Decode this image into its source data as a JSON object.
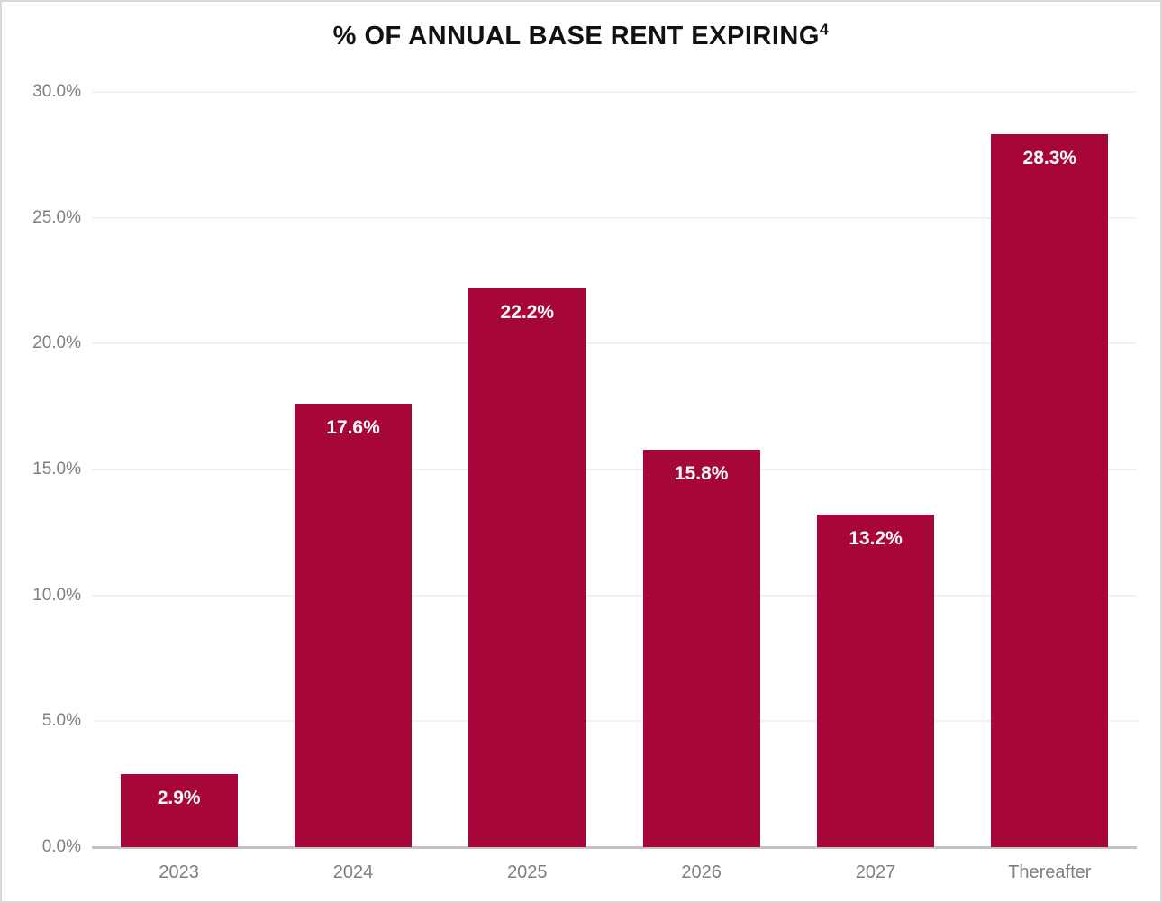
{
  "chart_data": {
    "type": "bar",
    "title": "% OF ANNUAL BASE RENT EXPIRING",
    "title_superscript": "4",
    "categories": [
      "2023",
      "2024",
      "2025",
      "2026",
      "2027",
      "Thereafter"
    ],
    "values": [
      2.9,
      17.6,
      22.2,
      15.8,
      13.2,
      28.3
    ],
    "value_labels": [
      "2.9%",
      "17.6%",
      "22.2%",
      "15.8%",
      "13.2%",
      "28.3%"
    ],
    "xlabel": "",
    "ylabel": "",
    "ylim": [
      0,
      30
    ],
    "ytick_step": 5,
    "yticks": [
      "0.0%",
      "5.0%",
      "10.0%",
      "15.0%",
      "20.0%",
      "25.0%",
      "30.0%"
    ],
    "grid": true,
    "legend": false,
    "colors": {
      "bar": "#A70638",
      "value_label": "#FFFFFF",
      "axis_text": "#7F7F7F",
      "gridline": "#F2F2F2",
      "axis_line": "#C3C3C3",
      "title_text": "#111111",
      "frame_border": "#D9D9D9",
      "background": "#FFFFFF"
    }
  }
}
